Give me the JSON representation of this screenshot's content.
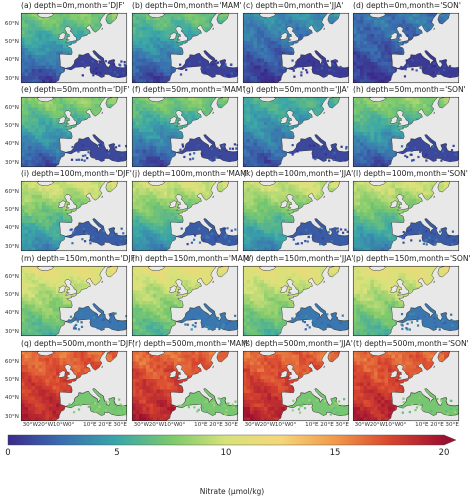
{
  "figure": {
    "colorbar": {
      "label": "Nitrate (µmol/kg)",
      "min": 0,
      "max": 20,
      "ticks": [
        "0",
        "5",
        "10",
        "15",
        "20"
      ],
      "extend": "max",
      "colormap": [
        "#3b2a8c",
        "#3a6fb0",
        "#3aa6a8",
        "#7cc96c",
        "#d7e27a",
        "#f6d67a",
        "#f19a4a",
        "#d8462f",
        "#9e1031"
      ]
    },
    "lat_ticks": [
      "30°N",
      "40°N",
      "50°N",
      "60°N"
    ],
    "lon_ticks": [
      "30°W",
      "20°W",
      "10°W",
      "0°",
      "10°E",
      "20°E",
      "30°E"
    ],
    "land_color": "#e8e8e8",
    "rows": [
      {
        "panels": [
          {
            "title": "(a) depth=0m,month='DJF'",
            "field": {
              "north": 7.5,
              "south": 1.0,
              "med": 0.5
            }
          },
          {
            "title": "(b) depth=0m,month='MAM'",
            "field": {
              "north": 7.0,
              "south": 1.0,
              "med": 0.5
            }
          },
          {
            "title": "(c) depth=0m,month='JJA'",
            "field": {
              "north": 4.0,
              "south": 0.6,
              "med": 0.3
            }
          },
          {
            "title": "(d) depth=0m,month='SON'",
            "field": {
              "north": 3.0,
              "south": 0.5,
              "med": 0.3
            }
          }
        ]
      },
      {
        "panels": [
          {
            "title": "(e) depth=50m,month='DJF'",
            "field": {
              "north": 8.0,
              "south": 1.5,
              "med": 0.8
            }
          },
          {
            "title": "(f) depth=50m,month='MAM'",
            "field": {
              "north": 7.5,
              "south": 1.2,
              "med": 0.8
            }
          },
          {
            "title": "(g) depth=50m,month='JJA'",
            "field": {
              "north": 6.0,
              "south": 1.5,
              "med": 0.8
            }
          },
          {
            "title": "(h) depth=50m,month='SON'",
            "field": {
              "north": 8.0,
              "south": 1.5,
              "med": 0.8
            }
          }
        ]
      },
      {
        "panels": [
          {
            "title": "(i) depth=100m,month='DJF'",
            "field": {
              "north": 10.0,
              "south": 3.5,
              "med": 1.5
            }
          },
          {
            "title": "(j) depth=100m,month='MAM'",
            "field": {
              "north": 10.0,
              "south": 3.5,
              "med": 1.5
            }
          },
          {
            "title": "(k) depth=100m,month='JJA'",
            "field": {
              "north": 10.0,
              "south": 3.5,
              "med": 1.5
            }
          },
          {
            "title": "(l) depth=100m,month='SON'",
            "field": {
              "north": 10.0,
              "south": 3.5,
              "med": 1.5
            }
          }
        ]
      },
      {
        "panels": [
          {
            "title": "(m) depth=150m,month='DJF'",
            "field": {
              "north": 11.0,
              "south": 6.0,
              "med": 2.5
            }
          },
          {
            "title": "(n) depth=150m,month='MAM'",
            "field": {
              "north": 11.0,
              "south": 6.0,
              "med": 2.5
            }
          },
          {
            "title": "(o) depth=150m,month='JJA'",
            "field": {
              "north": 11.0,
              "south": 6.0,
              "med": 2.5
            }
          },
          {
            "title": "(p) depth=150m,month='SON'",
            "field": {
              "north": 11.0,
              "south": 6.0,
              "med": 2.5
            }
          }
        ]
      },
      {
        "panels": [
          {
            "title": "(q) depth=500m,month='DJF'",
            "field": {
              "north": 16.5,
              "south": 19.0,
              "med": 7.0
            }
          },
          {
            "title": "(r) depth=500m,month='MAM'",
            "field": {
              "north": 16.5,
              "south": 19.0,
              "med": 7.0
            }
          },
          {
            "title": "(s) depth=500m,month='JJA'",
            "field": {
              "north": 16.5,
              "south": 19.0,
              "med": 7.0
            }
          },
          {
            "title": "(t) depth=500m,month='SON'",
            "field": {
              "north": 16.5,
              "south": 19.0,
              "med": 7.0
            }
          }
        ]
      }
    ]
  }
}
